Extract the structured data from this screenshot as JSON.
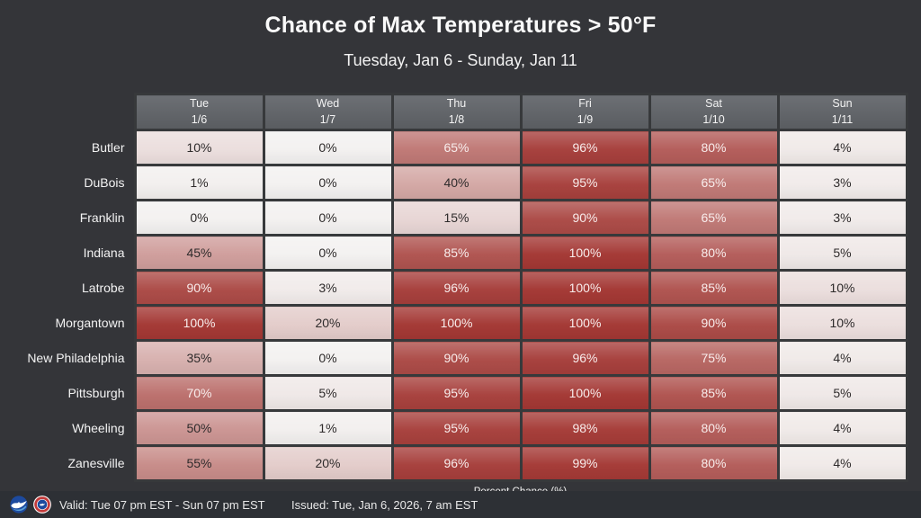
{
  "header": {
    "title": "Chance of Max Temperatures > 50°F",
    "subtitle": "Tuesday, Jan 6 - Sunday, Jan 11"
  },
  "chart_data": {
    "type": "heatmap",
    "title": "Chance of Max Temperatures > 50°F",
    "subtitle": "Tuesday, Jan 6 - Sunday, Jan 11",
    "unit_caption": "Percent Chance (%)",
    "columns": [
      {
        "day": "Tue",
        "date": "1/6"
      },
      {
        "day": "Wed",
        "date": "1/7"
      },
      {
        "day": "Thu",
        "date": "1/8"
      },
      {
        "day": "Fri",
        "date": "1/9"
      },
      {
        "day": "Sat",
        "date": "1/10"
      },
      {
        "day": "Sun",
        "date": "1/11"
      }
    ],
    "rows": [
      {
        "city": "Butler",
        "values": [
          10,
          0,
          65,
          96,
          80,
          4
        ]
      },
      {
        "city": "DuBois",
        "values": [
          1,
          0,
          40,
          95,
          65,
          3
        ]
      },
      {
        "city": "Franklin",
        "values": [
          0,
          0,
          15,
          90,
          65,
          3
        ]
      },
      {
        "city": "Indiana",
        "values": [
          45,
          0,
          85,
          100,
          80,
          5
        ]
      },
      {
        "city": "Latrobe",
        "values": [
          90,
          3,
          96,
          100,
          85,
          10
        ]
      },
      {
        "city": "Morgantown",
        "values": [
          100,
          20,
          100,
          100,
          90,
          10
        ]
      },
      {
        "city": "New Philadelphia",
        "values": [
          35,
          0,
          90,
          96,
          75,
          4
        ]
      },
      {
        "city": "Pittsburgh",
        "values": [
          70,
          5,
          95,
          100,
          85,
          5
        ]
      },
      {
        "city": "Wheeling",
        "values": [
          50,
          1,
          95,
          98,
          80,
          4
        ]
      },
      {
        "city": "Zanesville",
        "values": [
          55,
          20,
          96,
          99,
          80,
          4
        ]
      }
    ],
    "color_scale": {
      "min_value": 0,
      "max_value": 100,
      "min_color": "#f3f1f0",
      "max_color": "#a33733",
      "dark_text_color": "#2e2b2b",
      "light_text_color": "#f8edec",
      "light_text_threshold": 60
    }
  },
  "footer": {
    "valid_label": "Valid: Tue 07 pm EST - Sun 07 pm EST",
    "issued_label": "Issued: Tue, Jan 6, 2026, 7 am EST",
    "icons": [
      "noaa-logo",
      "nws-logo"
    ]
  }
}
